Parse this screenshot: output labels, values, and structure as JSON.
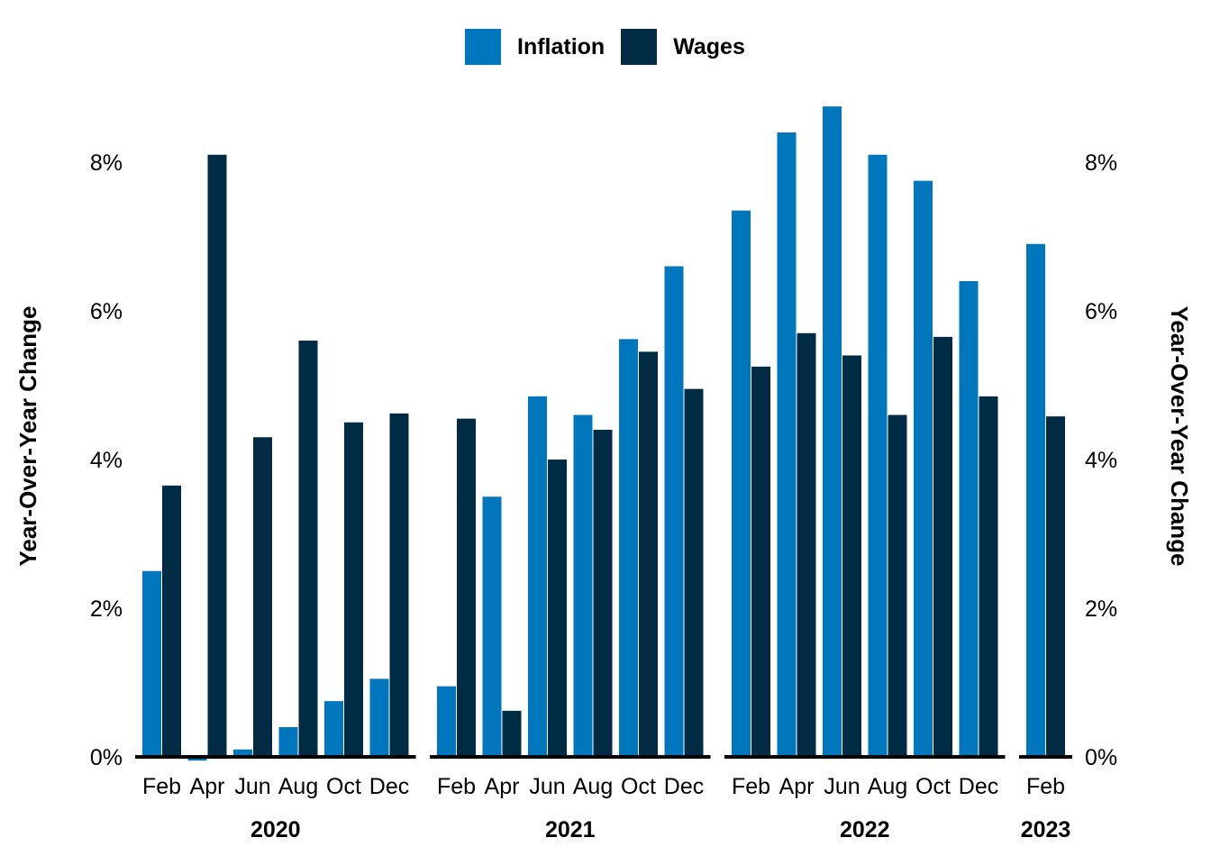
{
  "chart_data": {
    "type": "bar",
    "colors": {
      "inflation": "#0077bd",
      "wages": "#002b45"
    },
    "legend": [
      {
        "name": "Inflation",
        "color": "#0077bd"
      },
      {
        "name": "Wages",
        "color": "#002b45"
      }
    ],
    "ylabel_left": "Year-Over-Year Change",
    "ylabel_right": "Year-Over-Year Change",
    "ylim": [
      0,
      9
    ],
    "yticks": [
      "0%",
      "2%",
      "4%",
      "6%",
      "8%"
    ],
    "groups": [
      {
        "year": "2020",
        "tick_labels": [
          "Feb",
          "Apr",
          "Jun",
          "Aug",
          "Oct",
          "Dec"
        ],
        "series": [
          {
            "name": "Inflation",
            "values": [
              2.5,
              -0.05,
              0.1,
              0.4,
              0.75,
              1.05
            ]
          },
          {
            "name": "Wages",
            "values": [
              3.65,
              8.1,
              4.3,
              5.6,
              4.5,
              4.62
            ]
          }
        ]
      },
      {
        "year": "2021",
        "tick_labels": [
          "Feb",
          "Apr",
          "Jun",
          "Aug",
          "Oct",
          "Dec"
        ],
        "series": [
          {
            "name": "Inflation",
            "values": [
              0.95,
              3.5,
              4.85,
              4.6,
              5.62,
              6.6
            ]
          },
          {
            "name": "Wages",
            "values": [
              4.55,
              0.62,
              4.0,
              4.4,
              5.45,
              4.95
            ]
          }
        ]
      },
      {
        "year": "2022",
        "tick_labels": [
          "Feb",
          "Apr",
          "Jun",
          "Aug",
          "Oct",
          "Dec"
        ],
        "series": [
          {
            "name": "Inflation",
            "values": [
              7.35,
              8.4,
              8.75,
              8.1,
              7.75,
              6.4
            ]
          },
          {
            "name": "Wages",
            "values": [
              5.25,
              5.7,
              5.4,
              4.6,
              5.65,
              4.85
            ]
          }
        ]
      },
      {
        "year": "2023",
        "tick_labels": [
          "Feb"
        ],
        "series": [
          {
            "name": "Inflation",
            "values": [
              6.9
            ]
          },
          {
            "name": "Wages",
            "values": [
              4.58
            ]
          }
        ]
      }
    ]
  }
}
